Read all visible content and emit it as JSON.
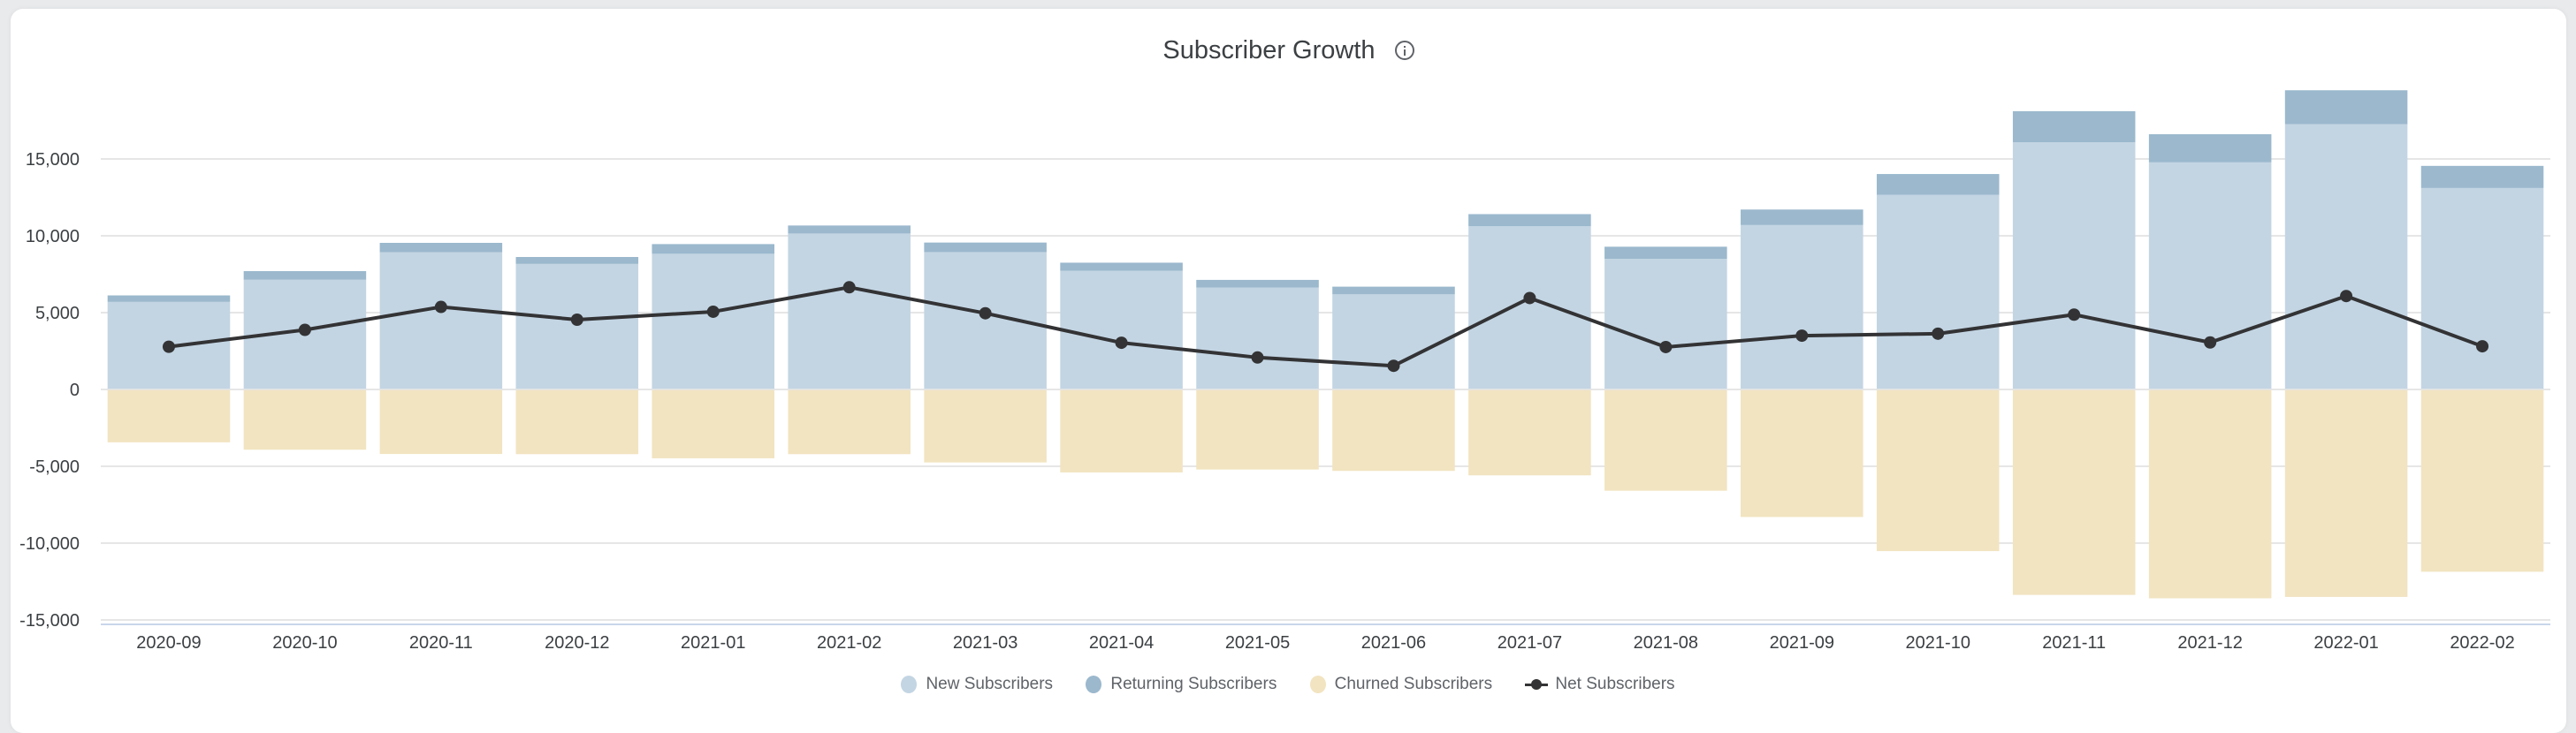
{
  "header": {
    "title": "Subscriber Growth",
    "info_icon": "info-circle-icon"
  },
  "colors": {
    "new": "#c3d5e3",
    "returning": "#9bb8cd",
    "churned": "#f2e4c1",
    "net": "#333335",
    "grid": "#e6e6e6",
    "axis": "#c9d6ea",
    "background": "#e9eaec"
  },
  "legend": [
    {
      "label": "New Subscribers",
      "key": "new"
    },
    {
      "label": "Returning Subscribers",
      "key": "returning"
    },
    {
      "label": "Churned Subscribers",
      "key": "churned"
    },
    {
      "label": "Net Subscribers",
      "key": "net"
    }
  ],
  "chart_data": {
    "type": "bar",
    "title": "Subscriber Growth",
    "xlabel": "",
    "ylabel": "",
    "stacked": true,
    "ylim": [
      -15000,
      20000
    ],
    "yticks": [
      15000,
      10000,
      5000,
      0,
      -5000,
      -10000,
      -15000
    ],
    "ytick_labels": [
      "15,000",
      "10,000",
      "5,000",
      "0",
      "-5,000",
      "-10,000",
      "-15,000"
    ],
    "grid": true,
    "legend_position": "bottom-center",
    "categories": [
      "2020-09",
      "2020-10",
      "2020-11",
      "2020-12",
      "2021-01",
      "2021-02",
      "2021-03",
      "2021-04",
      "2021-05",
      "2021-06",
      "2021-07",
      "2021-08",
      "2021-09",
      "2021-10",
      "2021-11",
      "2021-12",
      "2022-01",
      "2022-02"
    ],
    "series": [
      {
        "name": "New Subscribers",
        "type": "bar",
        "values": [
          5700,
          7140,
          8930,
          8170,
          8830,
          10150,
          8940,
          7730,
          6630,
          6190,
          10620,
          8500,
          10700,
          12670,
          16080,
          14780,
          17270,
          13110
        ]
      },
      {
        "name": "Returning Subscribers",
        "type": "bar",
        "values": [
          420,
          560,
          610,
          450,
          630,
          520,
          620,
          520,
          500,
          500,
          790,
          790,
          1010,
          1350,
          2030,
          1830,
          2200,
          1440
        ]
      },
      {
        "name": "Churned Subscribers",
        "type": "bar",
        "values": [
          -3440,
          -3920,
          -4200,
          -4210,
          -4480,
          -4210,
          -4750,
          -5400,
          -5210,
          -5300,
          -5590,
          -6590,
          -8300,
          -10520,
          -13370,
          -13590,
          -13500,
          -11860
        ]
      },
      {
        "name": "Net Subscribers",
        "type": "line",
        "values": [
          2780,
          3880,
          5370,
          4540,
          5060,
          6650,
          4960,
          3040,
          2080,
          1540,
          5950,
          2760,
          3500,
          3630,
          4870,
          3060,
          6080,
          2810
        ]
      }
    ]
  }
}
